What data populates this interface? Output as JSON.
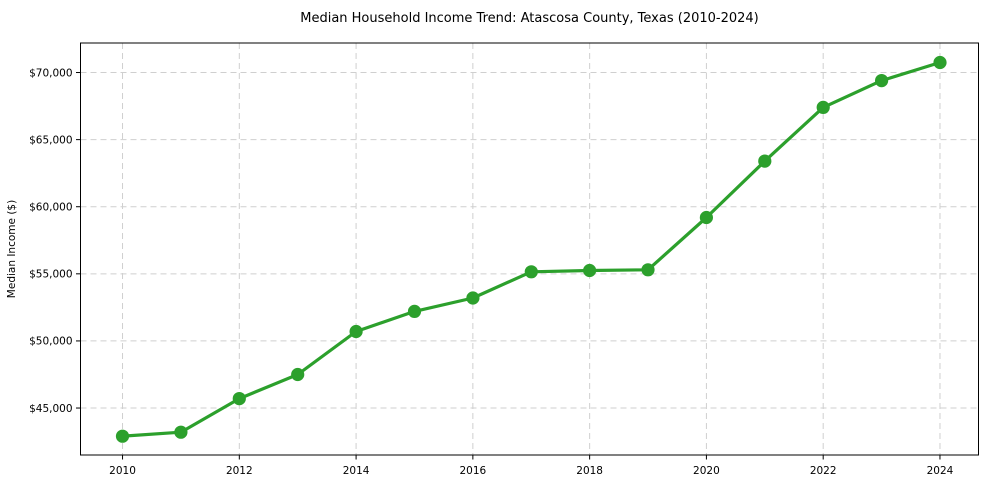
{
  "figure": {
    "background": "#ffffff"
  },
  "chart_data": {
    "type": "line",
    "title": "Median Household Income Trend: Atascosa County, Texas (2010-2024)",
    "xlabel": "",
    "ylabel": "Median Income ($)",
    "x": [
      2010,
      2011,
      2012,
      2013,
      2014,
      2015,
      2016,
      2017,
      2018,
      2019,
      2020,
      2021,
      2022,
      2023,
      2024
    ],
    "values": [
      42900,
      43200,
      45700,
      47500,
      50700,
      52200,
      53200,
      55150,
      55250,
      55300,
      59200,
      63400,
      67400,
      69400,
      70750
    ],
    "xticks": [
      2010,
      2012,
      2014,
      2016,
      2018,
      2020,
      2022,
      2024
    ],
    "xtick_labels": [
      "2010",
      "2012",
      "2014",
      "2016",
      "2018",
      "2020",
      "2022",
      "2024"
    ],
    "yticks": [
      45000,
      50000,
      55000,
      60000,
      65000,
      70000
    ],
    "ytick_labels": [
      "$45,000",
      "$50,000",
      "$55,000",
      "$60,000",
      "$65,000",
      "$70,000"
    ],
    "xlim": [
      2009.28,
      2024.66
    ],
    "ylim": [
      41500,
      72200
    ],
    "grid": true,
    "grid_style": "dashed",
    "grid_color": "#cfcfcf",
    "legend": false,
    "line_color": "#2ca02c",
    "line_width": 3.2,
    "marker": "circle",
    "marker_radius": 6.6,
    "axis_color": "#000000",
    "background": "#ffffff"
  }
}
